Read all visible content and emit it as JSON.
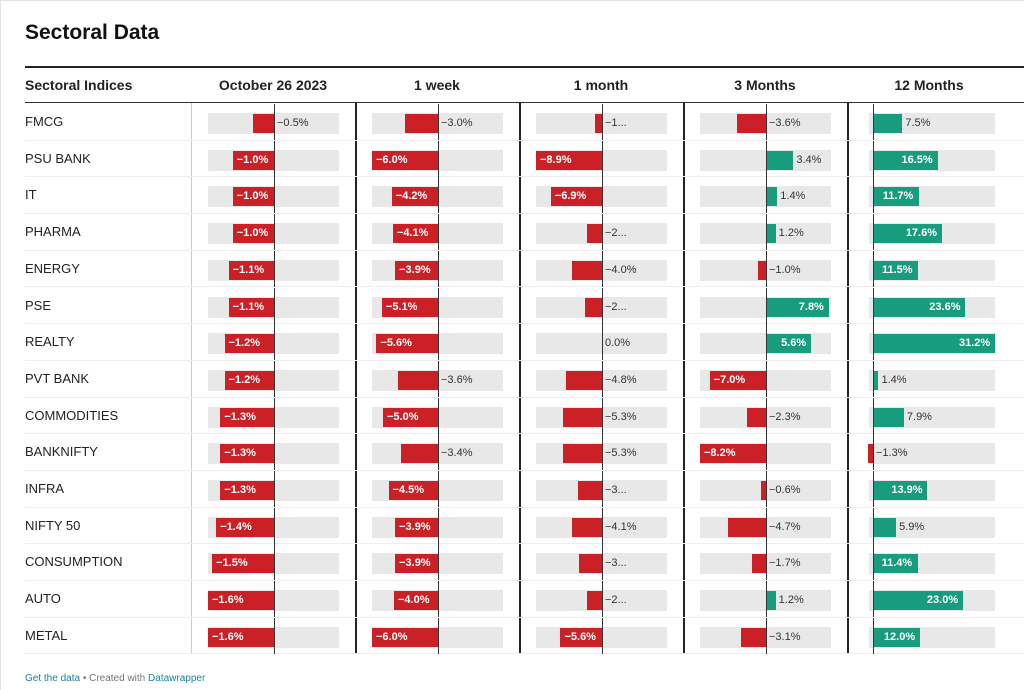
{
  "title": "Sectoral Data",
  "colors": {
    "negative": "#cb2026",
    "positive": "#179c7d",
    "track": "#e8e8e8"
  },
  "footer": {
    "link_data": "Get the data",
    "separator": " • Created with ",
    "link_tool": "Datawrapper"
  },
  "chart_data": {
    "type": "table",
    "title": "Sectoral Data",
    "columns": [
      "Sectoral Indices",
      "October 26 2023",
      "1 week",
      "1 month",
      "3 Months",
      "12 Months"
    ],
    "rows": [
      {
        "name": "FMCG",
        "values": [
          -0.5,
          -3.0,
          -1.0,
          -3.6,
          7.5
        ],
        "labels": [
          "−0.5%",
          "−3.0%",
          "−1...",
          "−3.6%",
          "7.5%"
        ]
      },
      {
        "name": "PSU BANK",
        "values": [
          -1.0,
          -6.0,
          -8.9,
          3.4,
          16.5
        ],
        "labels": [
          "−1.0%",
          "−6.0%",
          "−8.9%",
          "3.4%",
          "16.5%"
        ]
      },
      {
        "name": "IT",
        "values": [
          -1.0,
          -4.2,
          -6.9,
          1.4,
          11.7
        ],
        "labels": [
          "−1.0%",
          "−4.2%",
          "−6.9%",
          "1.4%",
          "11.7%"
        ]
      },
      {
        "name": "PHARMA",
        "values": [
          -1.0,
          -4.1,
          -2.0,
          1.2,
          17.6
        ],
        "labels": [
          "−1.0%",
          "−4.1%",
          "−2...",
          "1.2%",
          "17.6%"
        ]
      },
      {
        "name": "ENERGY",
        "values": [
          -1.1,
          -3.9,
          -4.0,
          -1.0,
          11.5
        ],
        "labels": [
          "−1.1%",
          "−3.9%",
          "−4.0%",
          "−1.0%",
          "11.5%"
        ]
      },
      {
        "name": "PSE",
        "values": [
          -1.1,
          -5.1,
          -2.3,
          7.8,
          23.6
        ],
        "labels": [
          "−1.1%",
          "−5.1%",
          "−2...",
          "7.8%",
          "23.6%"
        ]
      },
      {
        "name": "REALTY",
        "values": [
          -1.2,
          -5.6,
          0.0,
          5.6,
          31.2
        ],
        "labels": [
          "−1.2%",
          "−5.6%",
          "0.0%",
          "5.6%",
          "31.2%"
        ]
      },
      {
        "name": "PVT BANK",
        "values": [
          -1.2,
          -3.6,
          -4.8,
          -7.0,
          1.4
        ],
        "labels": [
          "−1.2%",
          "−3.6%",
          "−4.8%",
          "−7.0%",
          "1.4%"
        ]
      },
      {
        "name": "COMMODITIES",
        "values": [
          -1.3,
          -5.0,
          -5.3,
          -2.3,
          7.9
        ],
        "labels": [
          "−1.3%",
          "−5.0%",
          "−5.3%",
          "−2.3%",
          "7.9%"
        ]
      },
      {
        "name": "BANKNIFTY",
        "values": [
          -1.3,
          -3.4,
          -5.3,
          -8.2,
          -1.3
        ],
        "labels": [
          "−1.3%",
          "−3.4%",
          "−5.3%",
          "−8.2%",
          "−1.3%"
        ]
      },
      {
        "name": "INFRA",
        "values": [
          -1.3,
          -4.5,
          -3.3,
          -0.6,
          13.9
        ],
        "labels": [
          "−1.3%",
          "−4.5%",
          "−3...",
          "−0.6%",
          "13.9%"
        ]
      },
      {
        "name": "NIFTY 50",
        "values": [
          -1.4,
          -3.9,
          -4.1,
          -4.7,
          5.9
        ],
        "labels": [
          "−1.4%",
          "−3.9%",
          "−4.1%",
          "−4.7%",
          "5.9%"
        ]
      },
      {
        "name": "CONSUMPTION",
        "values": [
          -1.5,
          -3.9,
          -3.1,
          -1.7,
          11.4
        ],
        "labels": [
          "−1.5%",
          "−3.9%",
          "−3...",
          "−1.7%",
          "11.4%"
        ]
      },
      {
        "name": "AUTO",
        "values": [
          -1.6,
          -4.0,
          -2.0,
          1.2,
          23.0
        ],
        "labels": [
          "−1.6%",
          "−4.0%",
          "−2...",
          "1.2%",
          "23.0%"
        ]
      },
      {
        "name": "METAL",
        "values": [
          -1.6,
          -6.0,
          -5.6,
          -3.1,
          12.0
        ],
        "labels": [
          "−1.6%",
          "−6.0%",
          "−5.6%",
          "−3.1%",
          "12.0%"
        ]
      }
    ],
    "ranges": [
      [
        -1.6,
        0
      ],
      [
        -6.0,
        0
      ],
      [
        -8.9,
        0
      ],
      [
        -8.2,
        7.8
      ],
      [
        -1.3,
        31.2
      ]
    ]
  }
}
